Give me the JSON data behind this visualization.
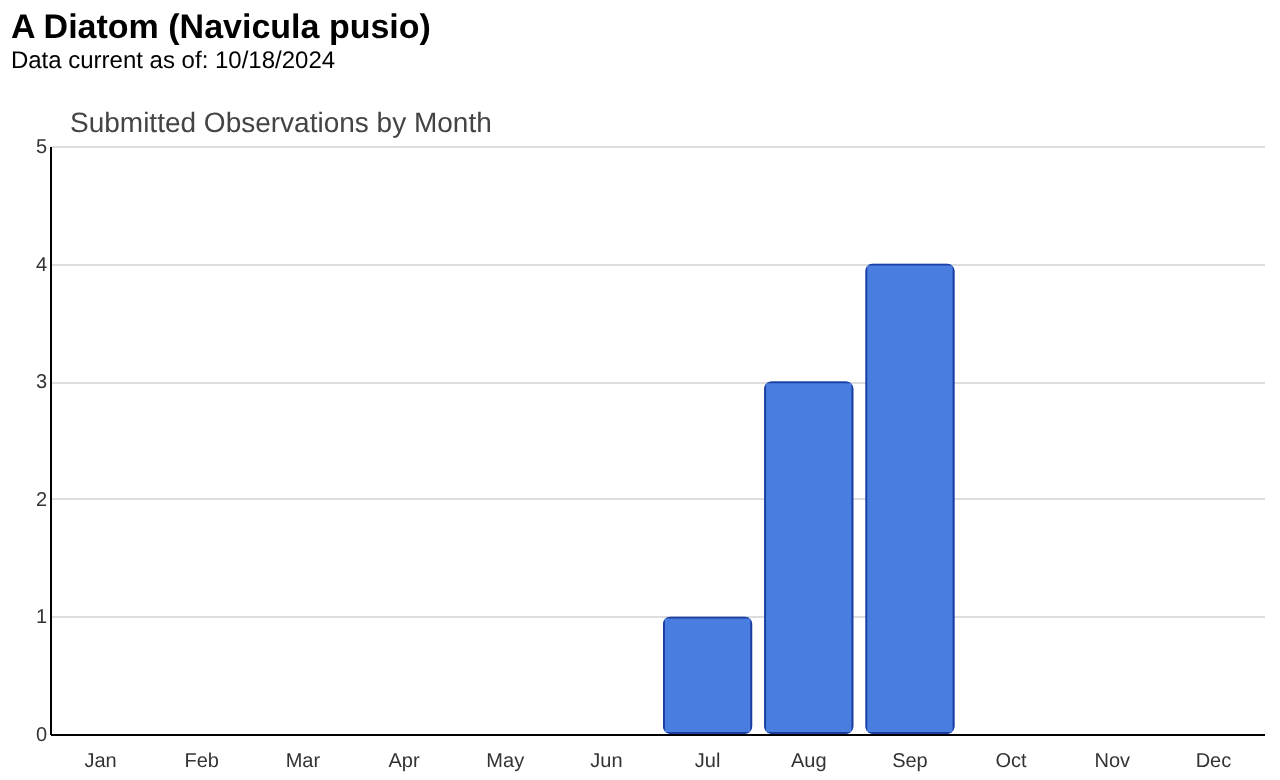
{
  "chart_data": {
    "type": "bar",
    "title": "A Diatom   (Navicula pusio)",
    "subtitle": "Data current as of: 10/18/2024",
    "annotations": [
      "Submitted Observations by Month"
    ],
    "categories": [
      "Jan",
      "Feb",
      "Mar",
      "Apr",
      "May",
      "Jun",
      "Jul",
      "Aug",
      "Sep",
      "Oct",
      "Nov",
      "Dec"
    ],
    "values": [
      0,
      0,
      0,
      0,
      0,
      0,
      1,
      3,
      4,
      0,
      0,
      0
    ],
    "color": "#4a7de0",
    "ylim": [
      0,
      5
    ],
    "yticks": [
      0,
      1,
      2,
      3,
      4,
      5
    ],
    "grid": "y"
  }
}
